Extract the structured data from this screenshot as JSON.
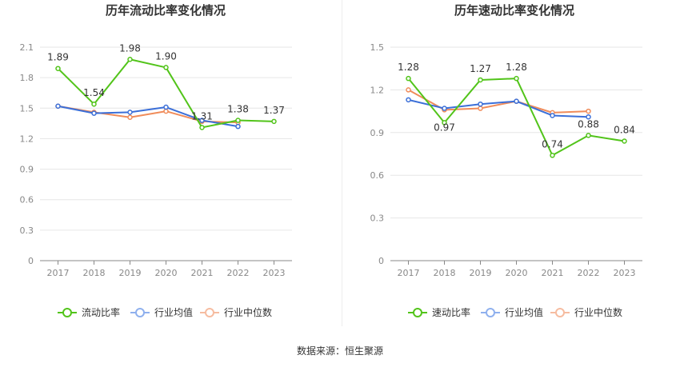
{
  "source": "数据来源：恒生聚源",
  "colors": {
    "primary": "#52c41a",
    "industry_avg": "#3b6fd8",
    "industry_median": "#f08c5a",
    "legend_avg": "#8fb0ee",
    "legend_median": "#f6bca0",
    "grid": "#e6e6e6",
    "axis": "#888888"
  },
  "chart_data": [
    {
      "type": "line",
      "title": "历年流动比率变化情况",
      "categories": [
        "2017",
        "2018",
        "2019",
        "2020",
        "2021",
        "2022",
        "2023"
      ],
      "ylim": [
        0,
        2.1
      ],
      "yticks": [
        "0",
        "0.3",
        "0.6",
        "0.9",
        "1.2",
        "1.5",
        "1.8",
        "2.1"
      ],
      "grid": true,
      "legend_position": "bottom",
      "series": [
        {
          "name": "流动比率",
          "values": [
            1.89,
            1.54,
            1.98,
            1.9,
            1.31,
            1.38,
            1.37
          ],
          "labels": [
            "1.89",
            "1.54",
            "1.98",
            "1.90",
            "1.31",
            "1.38",
            "1.37"
          ]
        },
        {
          "name": "行业均值",
          "values": [
            1.52,
            1.45,
            1.46,
            1.51,
            1.38,
            1.32,
            null
          ]
        },
        {
          "name": "行业中位数",
          "values": [
            1.52,
            1.46,
            1.41,
            1.47,
            1.37,
            1.36,
            null
          ]
        }
      ]
    },
    {
      "type": "line",
      "title": "历年速动比率变化情况",
      "categories": [
        "2017",
        "2018",
        "2019",
        "2020",
        "2021",
        "2022",
        "2023"
      ],
      "ylim": [
        0,
        1.5
      ],
      "yticks": [
        "0",
        "0.3",
        "0.6",
        "0.9",
        "1.2",
        "1.5"
      ],
      "grid": true,
      "legend_position": "bottom",
      "series": [
        {
          "name": "速动比率",
          "values": [
            1.28,
            0.97,
            1.27,
            1.28,
            0.74,
            0.88,
            0.84
          ],
          "labels": [
            "1.28",
            "0.97",
            "1.27",
            "1.28",
            "0.74",
            "0.88",
            "0.84"
          ]
        },
        {
          "name": "行业均值",
          "values": [
            1.13,
            1.07,
            1.1,
            1.12,
            1.02,
            1.01,
            null
          ]
        },
        {
          "name": "行业中位数",
          "values": [
            1.2,
            1.06,
            1.07,
            1.12,
            1.04,
            1.05,
            null
          ]
        }
      ]
    }
  ]
}
